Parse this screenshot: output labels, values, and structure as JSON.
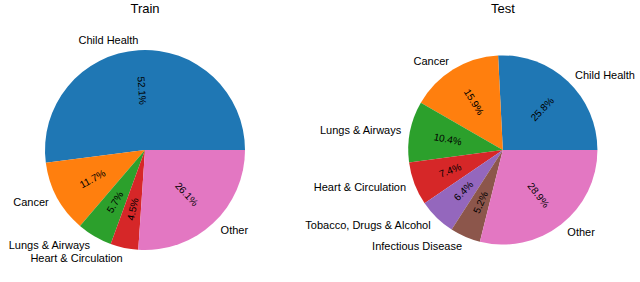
{
  "chart_data": [
    {
      "type": "pie",
      "title": "Train",
      "categories": [
        "Child Health",
        "Cancer",
        "Lungs & Airways",
        "Heart & Circulation",
        "Other"
      ],
      "values": [
        52.1,
        11.7,
        5.7,
        4.5,
        26.1
      ],
      "value_labels": [
        "52.1%",
        "11.7%",
        "5.7%",
        "4.5%",
        "26.1%"
      ],
      "colors": [
        "#1f77b4",
        "#ff7f0e",
        "#2ca02c",
        "#d62728",
        "#e377c2"
      ],
      "data_labels": true
    },
    {
      "type": "pie",
      "title": "Test",
      "categories": [
        "Child Health",
        "Cancer",
        "Lungs & Airways",
        "Heart & Circulation",
        "Tobacco, Drugs & Alcohol",
        "Infectious Disease",
        "Other"
      ],
      "values": [
        25.8,
        15.9,
        10.4,
        7.4,
        6.4,
        5.2,
        28.9
      ],
      "value_labels": [
        "25.8%",
        "15.9%",
        "10.4%",
        "7.4%",
        "6.4%",
        "5.2%",
        "28.9%"
      ],
      "colors": [
        "#1f77b4",
        "#ff7f0e",
        "#2ca02c",
        "#d62728",
        "#9467bd",
        "#8c564b",
        "#e377c2"
      ],
      "data_labels": true
    }
  ]
}
